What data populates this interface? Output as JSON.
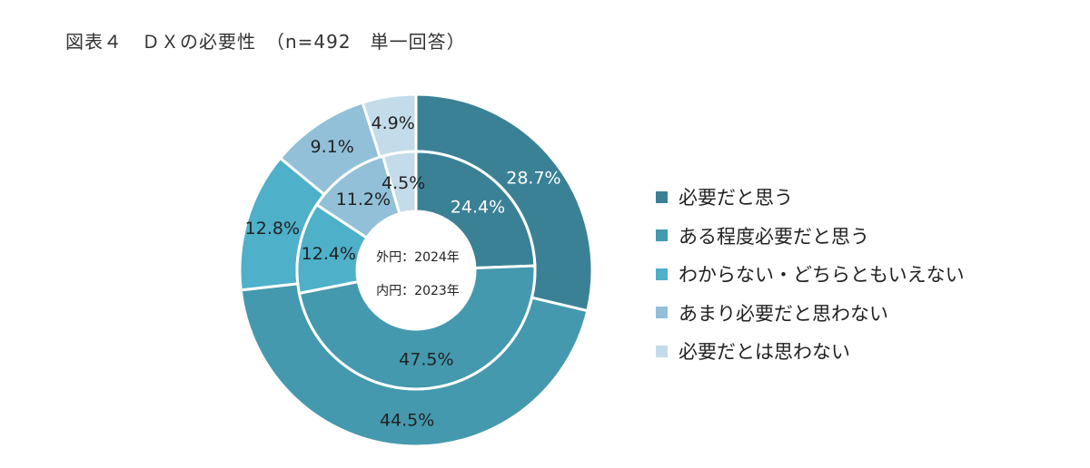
{
  "chart_data": {
    "type": "pie",
    "subtype": "double-donut",
    "title": "図表４　ＤＸの必要性　（n=492　単一回答）",
    "categories": [
      "必要だと思う",
      "ある程度必要だと思う",
      "わからない・どちらともいえない",
      "あまり必要だと思わない",
      "必要だとは思わない"
    ],
    "colors": [
      "#3b8196",
      "#4499ae",
      "#4eb0c9",
      "#91c0d8",
      "#c4dbe9"
    ],
    "series": [
      {
        "name": "外円：2024年",
        "ring": "outer",
        "values": [
          28.7,
          44.5,
          12.8,
          9.1,
          4.9
        ],
        "labels": [
          "28.7%",
          "44.5%",
          "12.8%",
          "9.1%",
          "4.9%"
        ]
      },
      {
        "name": "内円：2023年",
        "ring": "inner",
        "values": [
          24.4,
          47.5,
          12.4,
          11.2,
          4.5
        ],
        "labels": [
          "24.4%",
          "47.5%",
          "12.4%",
          "11.2%",
          "4.5%"
        ]
      }
    ],
    "label_colors": [
      "#ffffff",
      "#222222",
      "#222222",
      "#222222",
      "#222222"
    ],
    "legend_position": "right"
  }
}
